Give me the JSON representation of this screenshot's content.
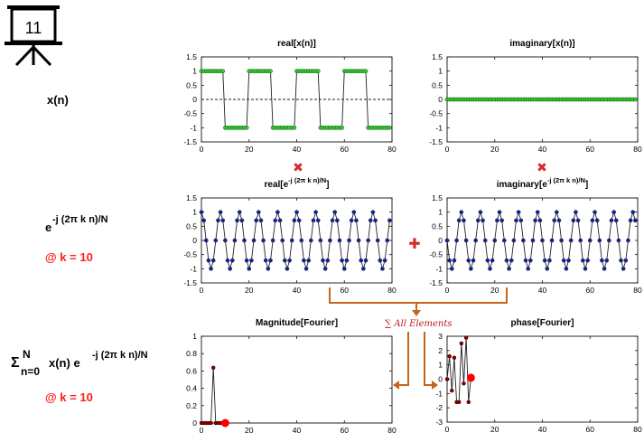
{
  "slide_number": "11",
  "left_labels": {
    "row1": "x(n)",
    "row2_main": "e",
    "row2_exp": "-j (2π k n)/N",
    "row2_k": "@ k = 10",
    "row3_sigma": "Σ",
    "row3_sup": "N",
    "row3_sub": "n=0",
    "row3_main": "x(n) e",
    "row3_exp": "-j (2π k n)/N",
    "row3_k": "@ k = 10"
  },
  "operators": {
    "times1": "✖",
    "times2": "✖",
    "plus": "✚",
    "sum_note": "∑ All Elements"
  },
  "colors": {
    "green_marker": "#33cc33",
    "blue_marker": "#1a237e",
    "dark_red_marker": "#8b0000",
    "highlight_red": "#ff0000",
    "operator_red": "#d42b2b",
    "arrow_orange": "#c8641a",
    "line_dark": "#222222"
  },
  "chart_data": [
    {
      "id": "real_x",
      "type": "line",
      "title": "real[x(n)]",
      "xlim": [
        0,
        80
      ],
      "ylim": [
        -1.5,
        1.5
      ],
      "xticks": [
        0,
        20,
        40,
        60,
        80
      ],
      "yticks": [
        1.5,
        1,
        0.5,
        0,
        -0.5,
        -1,
        -1.5
      ],
      "ytick_labels": [
        "1.5",
        "1",
        "0.5",
        "0",
        "-0.5",
        "-1",
        "-1.5"
      ],
      "zero_line": "dashed",
      "marker": "green",
      "x": [
        0,
        1,
        2,
        3,
        4,
        5,
        6,
        7,
        8,
        9,
        10,
        11,
        12,
        13,
        14,
        15,
        16,
        17,
        18,
        19,
        20,
        21,
        22,
        23,
        24,
        25,
        26,
        27,
        28,
        29,
        30,
        31,
        32,
        33,
        34,
        35,
        36,
        37,
        38,
        39,
        40,
        41,
        42,
        43,
        44,
        45,
        46,
        47,
        48,
        49,
        50,
        51,
        52,
        53,
        54,
        55,
        56,
        57,
        58,
        59,
        60,
        61,
        62,
        63,
        64,
        65,
        66,
        67,
        68,
        69,
        70,
        71,
        72,
        73,
        74,
        75,
        76,
        77,
        78,
        79
      ],
      "y": [
        1,
        1,
        1,
        1,
        1,
        1,
        1,
        1,
        1,
        1,
        -1,
        -1,
        -1,
        -1,
        -1,
        -1,
        -1,
        -1,
        -1,
        -1,
        1,
        1,
        1,
        1,
        1,
        1,
        1,
        1,
        1,
        1,
        -1,
        -1,
        -1,
        -1,
        -1,
        -1,
        -1,
        -1,
        -1,
        -1,
        1,
        1,
        1,
        1,
        1,
        1,
        1,
        1,
        1,
        1,
        -1,
        -1,
        -1,
        -1,
        -1,
        -1,
        -1,
        -1,
        -1,
        -1,
        1,
        1,
        1,
        1,
        1,
        1,
        1,
        1,
        1,
        1,
        -1,
        -1,
        -1,
        -1,
        -1,
        -1,
        -1,
        -1,
        -1,
        -1
      ]
    },
    {
      "id": "imag_x",
      "type": "line",
      "title": "imaginary[x(n)]",
      "xlim": [
        0,
        80
      ],
      "ylim": [
        -1.5,
        1.5
      ],
      "xticks": [
        0,
        20,
        40,
        60,
        80
      ],
      "yticks": [
        1.5,
        1,
        0.5,
        0,
        -0.5,
        -1,
        -1.5
      ],
      "ytick_labels": [
        "1.5",
        "1",
        "0.5",
        "0",
        "-0.5",
        "-1",
        "-1.5"
      ],
      "zero_line": "dashed",
      "marker": "green",
      "x": [
        0,
        1,
        2,
        3,
        4,
        5,
        6,
        7,
        8,
        9,
        10,
        11,
        12,
        13,
        14,
        15,
        16,
        17,
        18,
        19,
        20,
        21,
        22,
        23,
        24,
        25,
        26,
        27,
        28,
        29,
        30,
        31,
        32,
        33,
        34,
        35,
        36,
        37,
        38,
        39,
        40,
        41,
        42,
        43,
        44,
        45,
        46,
        47,
        48,
        49,
        50,
        51,
        52,
        53,
        54,
        55,
        56,
        57,
        58,
        59,
        60,
        61,
        62,
        63,
        64,
        65,
        66,
        67,
        68,
        69,
        70,
        71,
        72,
        73,
        74,
        75,
        76,
        77,
        78,
        79
      ],
      "y": [
        0,
        0,
        0,
        0,
        0,
        0,
        0,
        0,
        0,
        0,
        0,
        0,
        0,
        0,
        0,
        0,
        0,
        0,
        0,
        0,
        0,
        0,
        0,
        0,
        0,
        0,
        0,
        0,
        0,
        0,
        0,
        0,
        0,
        0,
        0,
        0,
        0,
        0,
        0,
        0,
        0,
        0,
        0,
        0,
        0,
        0,
        0,
        0,
        0,
        0,
        0,
        0,
        0,
        0,
        0,
        0,
        0,
        0,
        0,
        0,
        0,
        0,
        0,
        0,
        0,
        0,
        0,
        0,
        0,
        0,
        0,
        0,
        0,
        0,
        0,
        0,
        0,
        0,
        0,
        0
      ]
    },
    {
      "id": "real_e",
      "type": "line",
      "title_main": "real[e",
      "title_sup": "-j (2π k n)/N",
      "title_end": "]",
      "xlim": [
        0,
        80
      ],
      "ylim": [
        -1.5,
        1.5
      ],
      "xticks": [
        0,
        20,
        40,
        60,
        80
      ],
      "yticks": [
        1.5,
        1,
        0.5,
        0,
        -0.5,
        -1,
        -1.5
      ],
      "ytick_labels": [
        "1.5",
        "1",
        "0.5",
        "0",
        "-0.5",
        "-1",
        "-1.5"
      ],
      "zero_line": "none",
      "marker": "blue",
      "x": [
        0,
        1,
        2,
        3,
        4,
        5,
        6,
        7,
        8,
        9,
        10,
        11,
        12,
        13,
        14,
        15,
        16,
        17,
        18,
        19,
        20,
        21,
        22,
        23,
        24,
        25,
        26,
        27,
        28,
        29,
        30,
        31,
        32,
        33,
        34,
        35,
        36,
        37,
        38,
        39,
        40,
        41,
        42,
        43,
        44,
        45,
        46,
        47,
        48,
        49,
        50,
        51,
        52,
        53,
        54,
        55,
        56,
        57,
        58,
        59,
        60,
        61,
        62,
        63,
        64,
        65,
        66,
        67,
        68,
        69,
        70,
        71,
        72,
        73,
        74,
        75,
        76,
        77,
        78,
        79
      ],
      "y": [
        1,
        0.707,
        0,
        -0.707,
        -1,
        -0.707,
        0,
        0.707,
        1,
        0.707,
        0,
        -0.707,
        -1,
        -0.707,
        0,
        0.707,
        1,
        0.707,
        0,
        -0.707,
        -1,
        -0.707,
        0,
        0.707,
        1,
        0.707,
        0,
        -0.707,
        -1,
        -0.707,
        0,
        0.707,
        1,
        0.707,
        0,
        -0.707,
        -1,
        -0.707,
        0,
        0.707,
        1,
        0.707,
        0,
        -0.707,
        -1,
        -0.707,
        0,
        0.707,
        1,
        0.707,
        0,
        -0.707,
        -1,
        -0.707,
        0,
        0.707,
        1,
        0.707,
        0,
        -0.707,
        -1,
        -0.707,
        0,
        0.707,
        1,
        0.707,
        0,
        -0.707,
        -1,
        -0.707,
        0,
        0.707,
        1,
        0.707,
        0,
        -0.707,
        -1,
        -0.707,
        0,
        0.707
      ]
    },
    {
      "id": "imag_e",
      "type": "line",
      "title_main": "imaginary[e",
      "title_sup": "-j (2π k n)/N",
      "title_end": "]",
      "xlim": [
        0,
        80
      ],
      "ylim": [
        -1.5,
        1.5
      ],
      "xticks": [
        0,
        20,
        40,
        60,
        80
      ],
      "yticks": [
        1.5,
        1,
        0.5,
        0,
        -0.5,
        -1,
        -1.5
      ],
      "ytick_labels": [
        "1.5",
        "1",
        "0.5",
        "0",
        "-0.5",
        "-1",
        "-1.5"
      ],
      "zero_line": "none",
      "marker": "blue",
      "x": [
        0,
        1,
        2,
        3,
        4,
        5,
        6,
        7,
        8,
        9,
        10,
        11,
        12,
        13,
        14,
        15,
        16,
        17,
        18,
        19,
        20,
        21,
        22,
        23,
        24,
        25,
        26,
        27,
        28,
        29,
        30,
        31,
        32,
        33,
        34,
        35,
        36,
        37,
        38,
        39,
        40,
        41,
        42,
        43,
        44,
        45,
        46,
        47,
        48,
        49,
        50,
        51,
        52,
        53,
        54,
        55,
        56,
        57,
        58,
        59,
        60,
        61,
        62,
        63,
        64,
        65,
        66,
        67,
        68,
        69,
        70,
        71,
        72,
        73,
        74,
        75,
        76,
        77,
        78,
        79
      ],
      "y": [
        0,
        -0.707,
        -1,
        -0.707,
        0,
        0.707,
        1,
        0.707,
        0,
        -0.707,
        -1,
        -0.707,
        0,
        0.707,
        1,
        0.707,
        0,
        -0.707,
        -1,
        -0.707,
        0,
        0.707,
        1,
        0.707,
        0,
        -0.707,
        -1,
        -0.707,
        0,
        0.707,
        1,
        0.707,
        0,
        -0.707,
        -1,
        -0.707,
        0,
        0.707,
        1,
        0.707,
        0,
        -0.707,
        -1,
        -0.707,
        0,
        0.707,
        1,
        0.707,
        0,
        -0.707,
        -1,
        -0.707,
        0,
        0.707,
        1,
        0.707,
        0,
        -0.707,
        -1,
        -0.707,
        0,
        0.707,
        1,
        0.707,
        0,
        -0.707,
        -1,
        -0.707,
        0,
        0.707,
        1,
        0.707,
        0,
        -0.707,
        -1,
        -0.707,
        0,
        0.707,
        1,
        0.707
      ]
    },
    {
      "id": "magnitude",
      "type": "line",
      "title": "Magnitude[Fourier]",
      "xlim": [
        0,
        80
      ],
      "ylim": [
        0,
        1
      ],
      "xticks": [
        0,
        20,
        40,
        60,
        80
      ],
      "yticks": [
        1,
        0.8,
        0.6,
        0.4,
        0.2,
        0
      ],
      "ytick_labels": [
        "1",
        "0.8",
        "0.6",
        "0.4",
        "0.2",
        "0"
      ],
      "zero_line": "dashed",
      "marker": "darkred",
      "x": [
        0,
        1,
        2,
        3,
        4,
        5,
        6,
        7,
        8,
        9,
        10
      ],
      "y": [
        0,
        0,
        0,
        0,
        0,
        0.637,
        0,
        0,
        0,
        0,
        0
      ],
      "highlight": {
        "x": 10,
        "y": 0
      }
    },
    {
      "id": "phase",
      "type": "line",
      "title": "phase[Fourier]",
      "xlim": [
        0,
        80
      ],
      "ylim": [
        -3,
        3
      ],
      "xticks": [
        0,
        20,
        40,
        60,
        80
      ],
      "yticks": [
        3,
        2,
        1,
        0,
        -1,
        -2,
        -3
      ],
      "ytick_labels": [
        "3",
        "2",
        "1",
        "0",
        "-1",
        "-2",
        "-3"
      ],
      "zero_line": "none",
      "marker": "darkred",
      "x": [
        0,
        1,
        2,
        3,
        4,
        5,
        6,
        7,
        8,
        9,
        10
      ],
      "y": [
        0,
        1.6,
        -0.8,
        1.5,
        -1.6,
        -1.6,
        2.5,
        -0.3,
        2.9,
        -1.6,
        0.1
      ],
      "highlight": {
        "x": 10,
        "y": 0.1
      }
    }
  ]
}
